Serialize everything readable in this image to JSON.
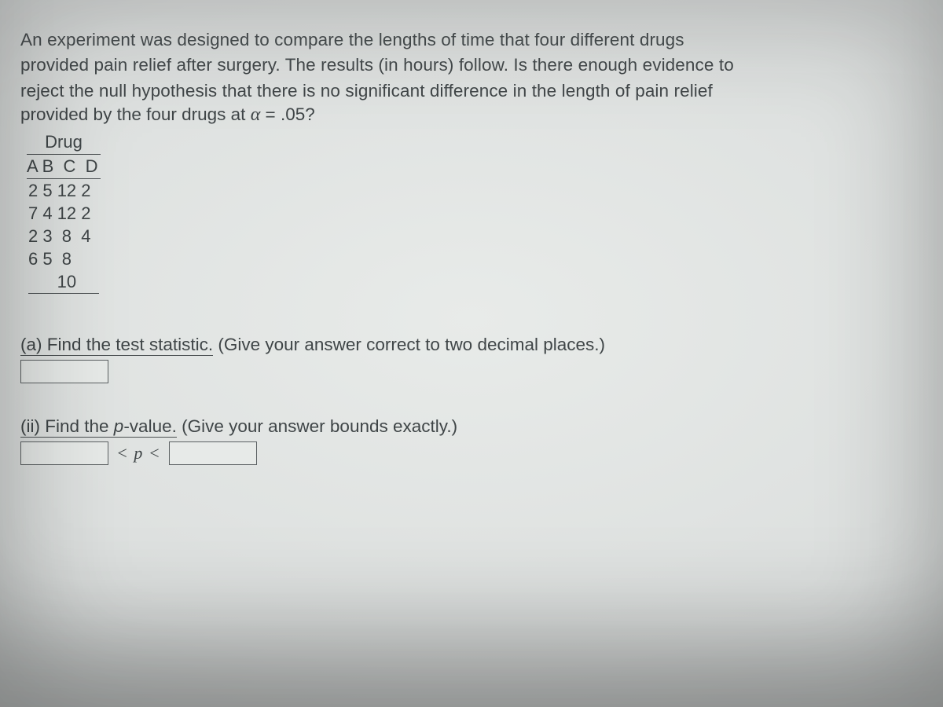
{
  "problem": {
    "text_line1": "An experiment was designed to compare the lengths of time that four different drugs",
    "text_line2": "provided pain relief after surgery. The results (in hours) follow. Is there enough evidence to",
    "text_line3": "reject the null hypothesis that there is no significant difference in the length of pain relief",
    "alpha_prefix": "provided by the four drugs at ",
    "alpha_symbol": "α",
    "alpha_eq": " = .05?"
  },
  "table": {
    "title": "Drug",
    "columns_line": "A B  C  D",
    "rows": [
      "2 5 12 2",
      "7 4 12 2",
      "2 3  8  4",
      "6 5  8"
    ],
    "last_row": "      10",
    "columns": [
      "A",
      "B",
      "C",
      "D"
    ],
    "data": {
      "A": [
        2,
        7,
        2,
        6
      ],
      "B": [
        5,
        4,
        3,
        5
      ],
      "C": [
        12,
        12,
        8,
        8,
        10
      ],
      "D": [
        2,
        2,
        4
      ]
    }
  },
  "questions": {
    "a": {
      "lead": "(a) Find the test statistic.",
      "tail": " (Give your answer correct to two decimal places.)"
    },
    "ii": {
      "lead_pre": "(ii) Find the ",
      "lead_p": "p",
      "lead_post": "-value.",
      "tail": " (Give your answer bounds exactly.)",
      "between": "< p <"
    }
  },
  "colors": {
    "text": "#3f4547",
    "rule": "#4a4f51",
    "input_border": "#5b6062",
    "bg_center": "#e8ebe9",
    "bg_edge": "#9ea3a3"
  },
  "fonts": {
    "body_family": "Verdana",
    "body_size_pt": 17,
    "math_family": "Times New Roman"
  },
  "alpha_value": 0.05
}
